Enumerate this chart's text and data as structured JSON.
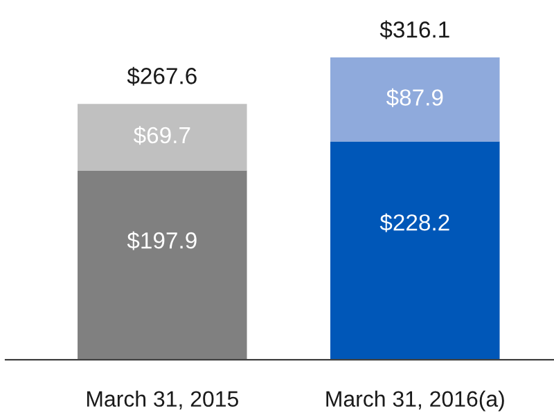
{
  "chart_data": {
    "type": "bar",
    "stacked": true,
    "categories": [
      "March 31, 2015",
      "March 31, 2016(a)"
    ],
    "series": [
      {
        "colors": [
          "#808080",
          "#0057b8"
        ],
        "values": [
          197.9,
          228.2
        ],
        "value_labels": [
          "$197.9",
          "$228.2"
        ]
      },
      {
        "colors": [
          "#c0c0c0",
          "#8faadc"
        ],
        "values": [
          69.7,
          87.9
        ],
        "value_labels": [
          "$69.7",
          "$87.9"
        ]
      }
    ],
    "totals": [
      "$267.6",
      "$316.1"
    ],
    "grid": false,
    "legend": false
  }
}
